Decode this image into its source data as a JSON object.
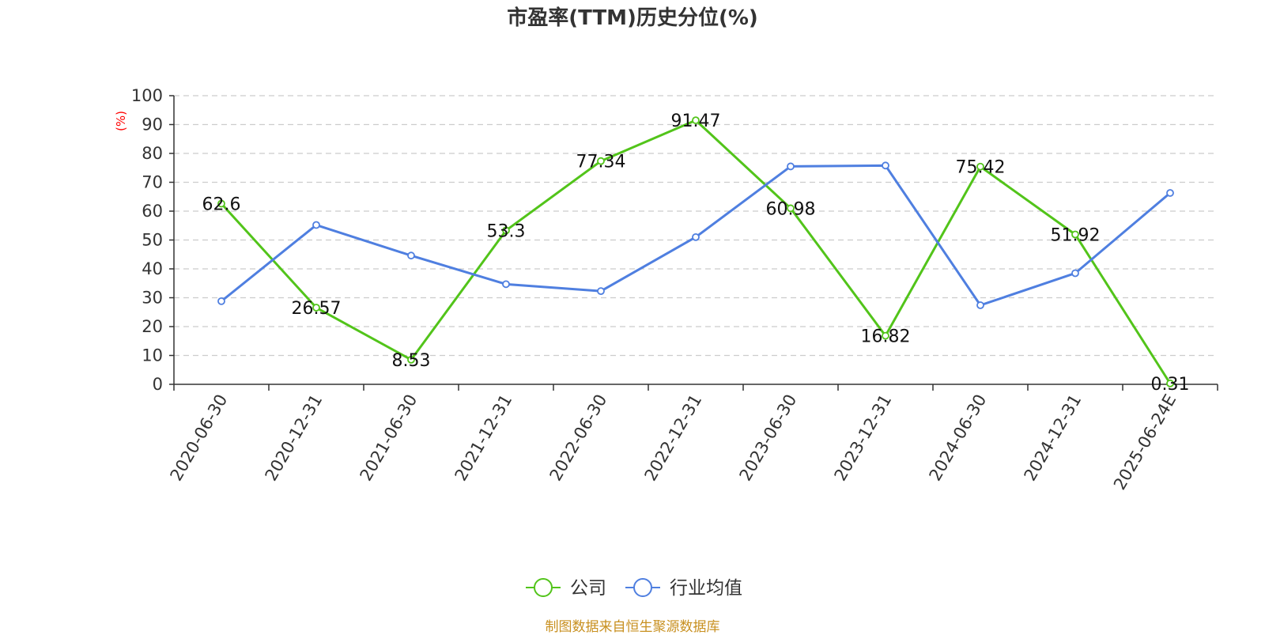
{
  "chart_data": {
    "type": "line",
    "title": "市盈率(TTM)历史分位(%)",
    "ylabel": "(%)",
    "ylim": [
      0,
      100
    ],
    "yticks": [
      "0",
      "10",
      "20",
      "30",
      "40",
      "50",
      "60",
      "70",
      "80",
      "90",
      "100"
    ],
    "categories": [
      "2020-06-30",
      "2020-12-31",
      "2021-06-30",
      "2021-12-31",
      "2022-06-30",
      "2022-12-31",
      "2023-06-30",
      "2023-12-31",
      "2024-06-30",
      "2024-12-31",
      "2025-06-24E"
    ],
    "grid": true,
    "legend_position": "bottom-center",
    "series": [
      {
        "name": "公司",
        "color": "#52c41a",
        "values": [
          62.6,
          26.57,
          8.53,
          53.3,
          77.34,
          91.47,
          60.98,
          16.82,
          75.42,
          51.92,
          0.31
        ],
        "labels": [
          "62.6",
          "26.57",
          "8.53",
          "53.3",
          "77.34",
          "91.47",
          "60.98",
          "16.82",
          "75.42",
          "51.92",
          "0.31"
        ]
      },
      {
        "name": "行业均值",
        "color": "#4f7fe0",
        "values": [
          28.8,
          55.2,
          44.6,
          34.7,
          32.3,
          51.0,
          75.5,
          75.8,
          27.4,
          38.5,
          66.3
        ]
      }
    ]
  },
  "source_text": "制图数据来自恒生聚源数据库",
  "source_color": "#c89020"
}
